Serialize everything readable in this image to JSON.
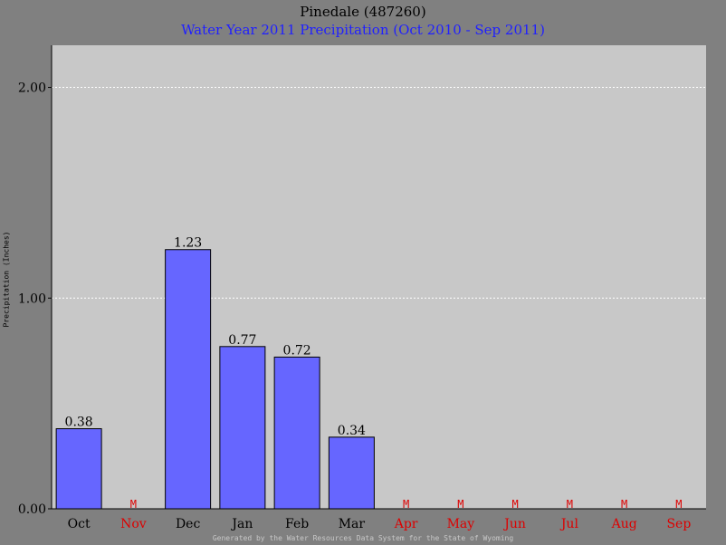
{
  "chart_data": {
    "type": "bar",
    "title": "Pinedale (487260)",
    "subtitle": "Water Year 2011 Precipitation (Oct 2010 - Sep 2011)",
    "ylabel": "Precipitation (Inches)",
    "xlabel": "",
    "ylim": [
      0,
      2.2
    ],
    "yticks": [
      "0.00",
      "1.00",
      "2.00"
    ],
    "ytick_values": [
      0,
      1,
      2
    ],
    "grid": true,
    "categories": [
      "Oct",
      "Nov",
      "Dec",
      "Jan",
      "Feb",
      "Mar",
      "Apr",
      "May",
      "Jun",
      "Jul",
      "Aug",
      "Sep"
    ],
    "values": [
      0.38,
      null,
      1.23,
      0.77,
      0.72,
      0.34,
      null,
      null,
      null,
      null,
      null,
      null
    ],
    "value_labels": [
      "0.38",
      "",
      "1.23",
      "0.77",
      "0.72",
      "0.34",
      "",
      "",
      "",
      "",
      "",
      ""
    ],
    "missing_marker": "M",
    "footer": "Generated by the Water Resources Data System for the State of Wyoming",
    "colors": {
      "background": "#808080",
      "plot_area": "#c8c8c8",
      "bar_fill": "#6666ff",
      "bar_stroke": "#000000",
      "title": "#000000",
      "subtitle": "#2020ff",
      "missing": "#dd0000",
      "grid": "#ffffff",
      "footer": "#c8c8c8"
    }
  }
}
